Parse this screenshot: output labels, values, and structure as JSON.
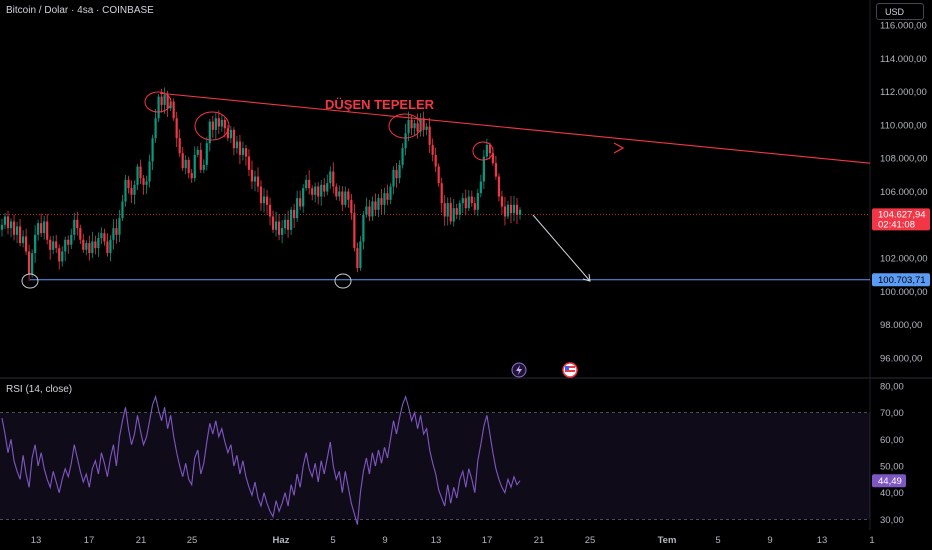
{
  "header": {
    "title": "Bitcoin / Dolar · 4sa · COINBASE",
    "currency": "USD"
  },
  "price_axis": {
    "ticks": [
      "116.000,00",
      "114.000,00",
      "112.000,00",
      "110.000,00",
      "108.000,00",
      "106.000,00",
      "102.000,00",
      "100.000,00",
      "98.000,00",
      "96.000,00"
    ]
  },
  "price_label": {
    "value": "104.627,94",
    "countdown": "02:41:08",
    "color": "#f23645"
  },
  "support_label": {
    "value": "100.703,71",
    "color": "#5b9cf6"
  },
  "annotation": {
    "text": "DÜŞEN TEPELER",
    "color": "#f23645"
  },
  "rsi": {
    "title": "RSI (14, close)",
    "value": "44,49",
    "ticks": [
      "80,00",
      "70,00",
      "60,00",
      "50,00",
      "40,00",
      "30,00"
    ],
    "color": "#7e57c2"
  },
  "time_axis": {
    "labels": [
      "13",
      "17",
      "21",
      "25",
      "Haz",
      "5",
      "9",
      "13",
      "17",
      "21",
      "25",
      "Tem",
      "5",
      "9",
      "13",
      "1"
    ]
  },
  "colors": {
    "up": "#089981",
    "down": "#f23645",
    "trendline": "#f23645",
    "support": "#5b9cf6"
  },
  "events": {
    "icons": [
      "lightning-icon",
      "us-flag-icon"
    ]
  },
  "chart_data": [
    {
      "type": "candlestick",
      "symbol": "Bitcoin / Dolar",
      "interval": "4sa",
      "exchange": "COINBASE",
      "ylim": [
        94800,
        117500
      ],
      "last_price": 104627.94,
      "support_level": 100703.71,
      "trendline": {
        "start": 111900,
        "end": 107700
      },
      "close_series": [
        104000,
        104500,
        103800,
        104200,
        103400,
        103900,
        102900,
        103300,
        102400,
        101000,
        102300,
        103400,
        104100,
        103500,
        104200,
        103100,
        102500,
        103000,
        102600,
        101800,
        102400,
        103100,
        102800,
        103400,
        104300,
        103800,
        103100,
        102500,
        102900,
        102300,
        103000,
        102600,
        103200,
        103500,
        103000,
        102300,
        103100,
        103800,
        103400,
        104400,
        105400,
        106700,
        106200,
        105800,
        106400,
        107500,
        106800,
        106400,
        106600,
        107800,
        109200,
        110400,
        111700,
        111200,
        111800,
        111000,
        111400,
        110400,
        109200,
        108300,
        107400,
        107900,
        107100,
        106800,
        108200,
        108500,
        107300,
        107600,
        108900,
        110200,
        109700,
        110400,
        109900,
        110300,
        109800,
        109200,
        109700,
        108600,
        109000,
        108200,
        108600,
        108100,
        107300,
        106600,
        106900,
        106300,
        105300,
        105700,
        105200,
        104500,
        103700,
        104200,
        103400,
        103800,
        104300,
        103700,
        104900,
        104400,
        105600,
        105100,
        106200,
        106700,
        106200,
        105800,
        106300,
        105700,
        106400,
        106000,
        106500,
        107200,
        106300,
        105700,
        106000,
        105200,
        106000,
        105500,
        104700,
        102600,
        101400,
        103000,
        104600,
        105100,
        104500,
        105400,
        104900,
        105600,
        105200,
        105900,
        105500,
        106300,
        107300,
        106800,
        107600,
        108600,
        109500,
        110300,
        109800,
        110100,
        109600,
        110400,
        109700,
        109900,
        108800,
        108200,
        107500,
        106500,
        105300,
        104500,
        105300,
        104200,
        105000,
        104600,
        105300,
        105600,
        105000,
        105700,
        105300,
        104900,
        105900,
        106600,
        108100,
        108800,
        108300,
        107700,
        106900,
        105700,
        105100,
        104500,
        105200,
        104700,
        105200,
        104600,
        104900
      ]
    },
    {
      "type": "line",
      "title": "RSI (14, close)",
      "ylim": [
        26,
        83
      ],
      "bands": [
        30,
        70
      ],
      "last_value": 44.49,
      "values": [
        68,
        62,
        55,
        60,
        52,
        48,
        45,
        54,
        47,
        42,
        53,
        58,
        50,
        55,
        49,
        45,
        42,
        48,
        44,
        40,
        45,
        49,
        46,
        51,
        58,
        53,
        48,
        44,
        47,
        42,
        49,
        52,
        47,
        55,
        51,
        46,
        53,
        58,
        50,
        61,
        67,
        72,
        64,
        58,
        62,
        69,
        63,
        58,
        61,
        67,
        73,
        76,
        71,
        67,
        72,
        64,
        69,
        61,
        55,
        50,
        46,
        51,
        45,
        43,
        53,
        56,
        47,
        51,
        59,
        66,
        62,
        67,
        61,
        64,
        59,
        55,
        58,
        50,
        54,
        47,
        52,
        46,
        42,
        39,
        44,
        38,
        35,
        40,
        36,
        33,
        31,
        37,
        33,
        36,
        40,
        35,
        43,
        39,
        47,
        42,
        50,
        55,
        49,
        46,
        51,
        44,
        52,
        47,
        53,
        59,
        50,
        45,
        48,
        40,
        48,
        42,
        36,
        32,
        28,
        40,
        48,
        53,
        47,
        55,
        50,
        56,
        51,
        57,
        53,
        60,
        67,
        62,
        68,
        73,
        76,
        72,
        67,
        70,
        64,
        69,
        62,
        64,
        56,
        51,
        47,
        41,
        38,
        35,
        43,
        36,
        42,
        38,
        45,
        48,
        42,
        49,
        45,
        40,
        52,
        58,
        65,
        69,
        62,
        55,
        49,
        45,
        42,
        40,
        45,
        42,
        46,
        43,
        44.49
      ]
    }
  ]
}
